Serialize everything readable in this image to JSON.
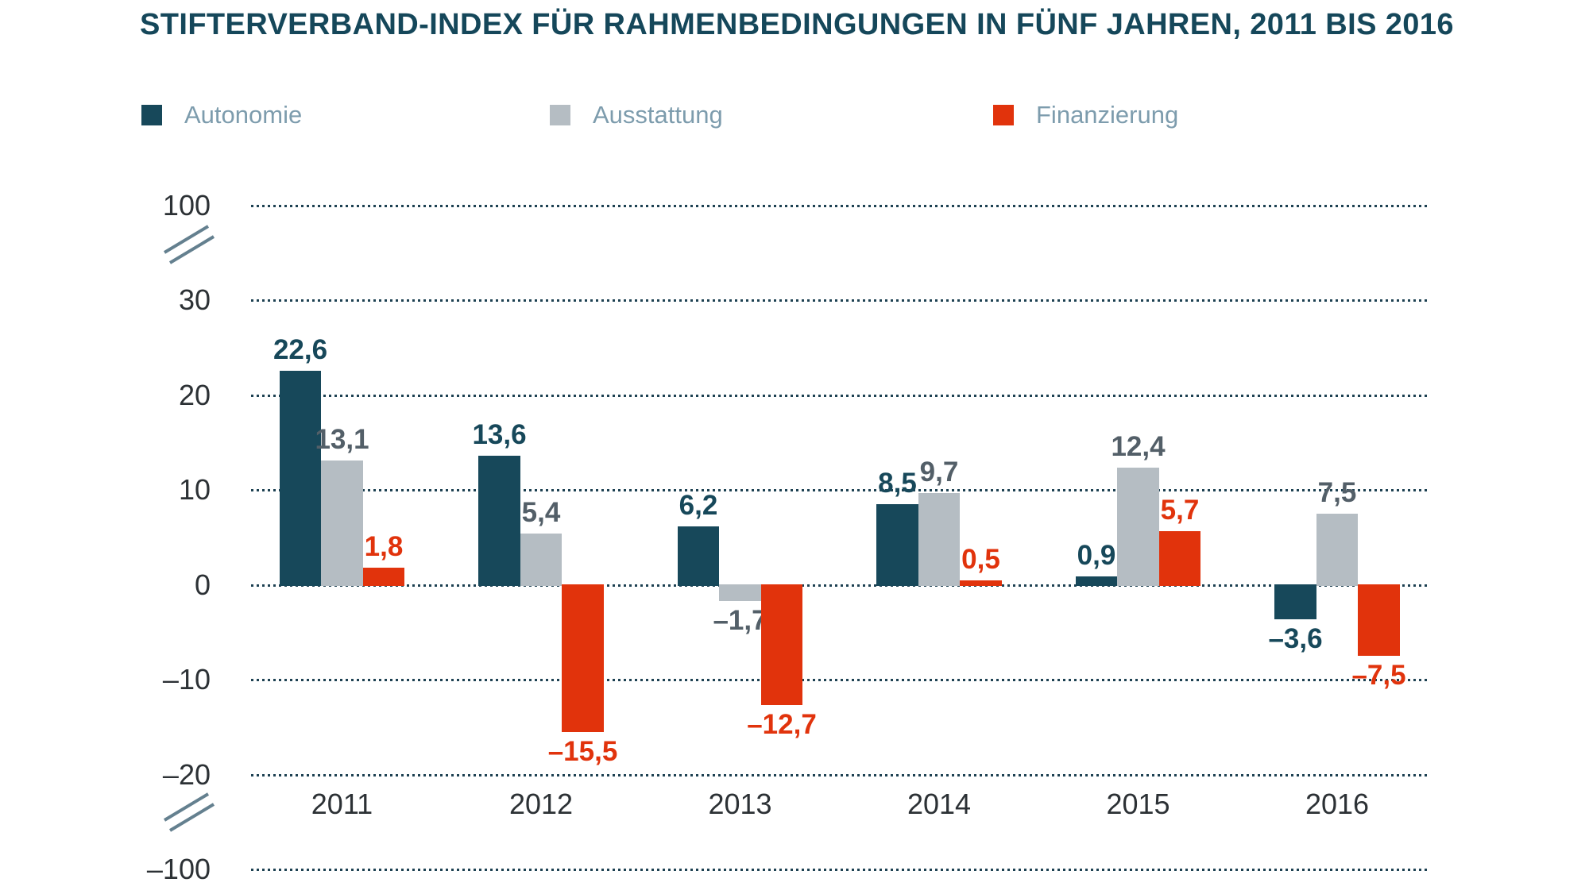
{
  "title": "STIFTERVERBAND-INDEX FÜR RAHMENBEDINGUNGEN IN FÜNF JAHREN, 2011 BIS 2016",
  "legend": {
    "items": [
      "Autonomie",
      "Ausstattung",
      "Finanzierung"
    ]
  },
  "colors": {
    "background": "#ffffff",
    "title_text": "#15475a",
    "legend_text": "#7d9cad",
    "axis_text": "#2c3135",
    "gridline_dots": "#1d4152",
    "axis_break_marks": "#64808f",
    "autonomie": "#17485a",
    "ausstattung": "#b5bdc3",
    "ausstattung_label": "#535f68",
    "finanzierung": "#e1330c"
  },
  "chart_data": {
    "type": "bar",
    "title": "STIFTERVERBAND-INDEX FÜR RAHMENBEDINGUNGEN IN FÜNF JAHREN, 2011 BIS 2016",
    "categories": [
      "2011",
      "2012",
      "2013",
      "2014",
      "2015",
      "2016"
    ],
    "series": [
      {
        "name": "Autonomie",
        "color": "#17485a",
        "label_color": "#17485a",
        "values": [
          22.6,
          13.6,
          6.2,
          8.5,
          0.9,
          -3.6
        ],
        "value_labels": [
          "22,6",
          "13,6",
          "6,2",
          "8,5",
          "0,9",
          "–3,6"
        ]
      },
      {
        "name": "Ausstattung",
        "color": "#b5bdc3",
        "label_color": "#535f68",
        "values": [
          13.1,
          5.4,
          -1.7,
          9.7,
          12.4,
          7.5
        ],
        "value_labels": [
          "13,1",
          "5,4",
          "–1,7",
          "9,7",
          "12,4",
          "7,5"
        ]
      },
      {
        "name": "Finanzierung",
        "color": "#e1330c",
        "label_color": "#e1330c",
        "values": [
          1.8,
          -15.5,
          -12.7,
          0.5,
          5.7,
          -7.5
        ],
        "value_labels": [
          "1,8",
          "–15,5",
          "–12,7",
          "0,5",
          "5,7",
          "–7,5"
        ]
      }
    ],
    "y_axis": {
      "tick_values": [
        100,
        30,
        20,
        10,
        0,
        -10,
        -20,
        -100
      ],
      "tick_labels": [
        "100",
        "30",
        "20",
        "10",
        "0",
        "–10",
        "–20",
        "–100"
      ],
      "broken_axis": true,
      "breaks_between": [
        [
          100,
          30
        ],
        [
          -20,
          -100
        ]
      ],
      "visible_linear_range": [
        -20,
        30
      ],
      "gridlines": "dotted"
    },
    "legend_position": "top",
    "xlabel": "",
    "ylabel": ""
  }
}
